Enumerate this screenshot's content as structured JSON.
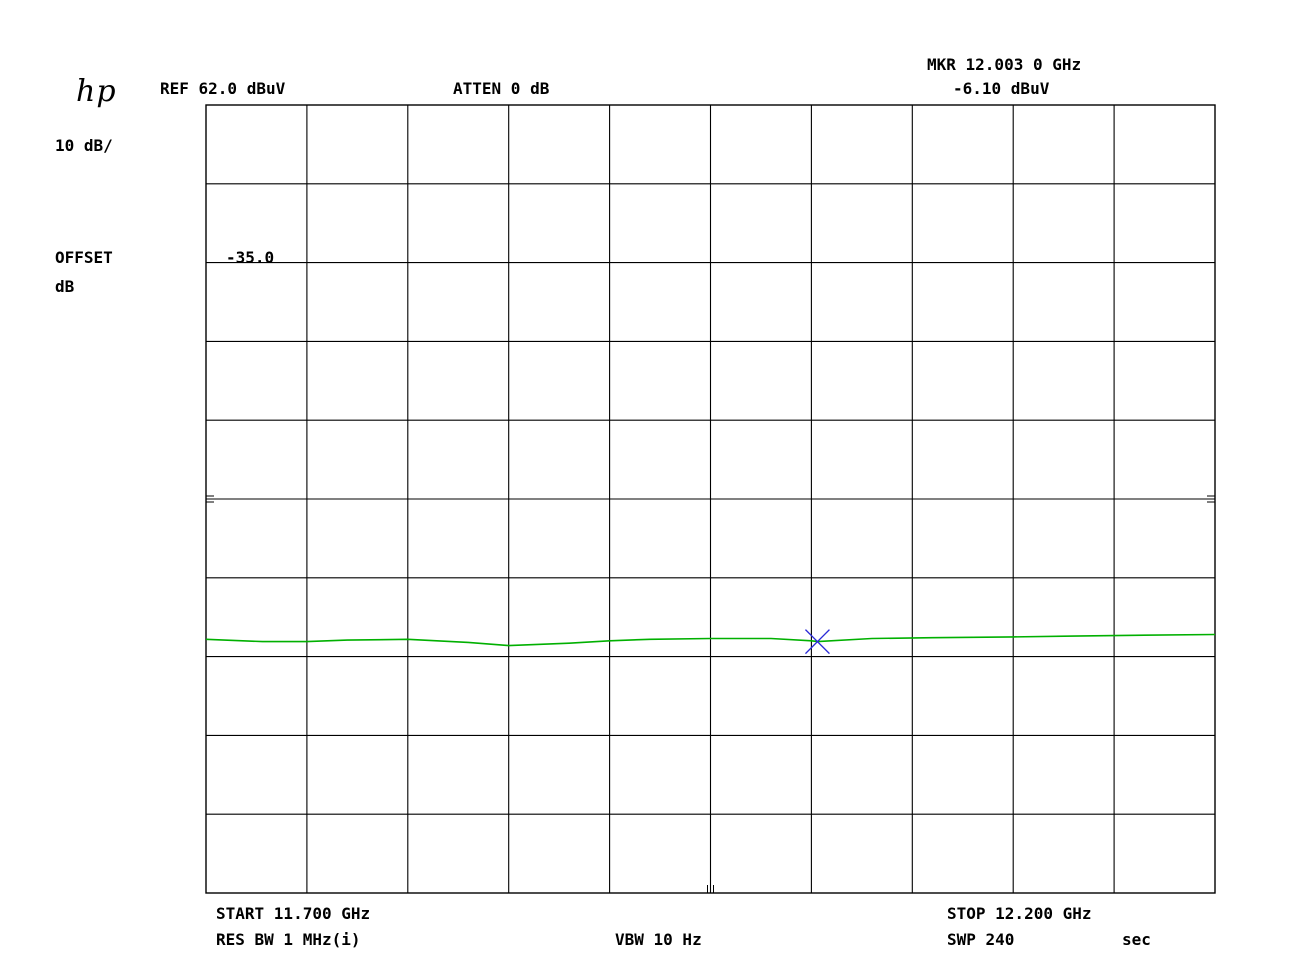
{
  "header": {
    "logo": "hp",
    "ref_level": "REF 62.0 dBuV",
    "atten": "ATTEN 0 dB",
    "marker_freq": "MKR 12.003 0 GHz",
    "marker_level": "-6.10 dBuV",
    "scale": "10 dB/",
    "offset_label": "OFFSET",
    "offset_unit": "dB",
    "offset_value": "-35.0"
  },
  "footer": {
    "start": "START 11.700 GHz",
    "res_bw": "RES BW 1 MHz(i)",
    "vbw": "VBW 10 Hz",
    "stop": "STOP 12.200 GHz",
    "sweep": "SWP 240",
    "sweep_unit": "sec"
  },
  "colors": {
    "trace": "#00b000",
    "marker": "#2a2ad8",
    "grid": "#000000"
  },
  "chart_data": {
    "type": "line",
    "x_unit": "GHz",
    "y_unit": "dBuV",
    "xlim": [
      11.7,
      12.2
    ],
    "ylim": [
      -38.0,
      62.0
    ],
    "grid": true,
    "x_divisions": 10,
    "y_divisions": 10,
    "series": [
      {
        "x": [
          11.7,
          11.728,
          11.75,
          11.77,
          11.8,
          11.83,
          11.85,
          11.88,
          11.9,
          11.92,
          11.95,
          11.98,
          12.0,
          12.003,
          12.03,
          12.06,
          12.1,
          12.13,
          12.16,
          12.2
        ],
        "values": [
          -5.8,
          -6.1,
          -6.1,
          -5.9,
          -5.8,
          -6.2,
          -6.6,
          -6.3,
          -6.0,
          -5.8,
          -5.7,
          -5.7,
          -6.0,
          -6.1,
          -5.7,
          -5.6,
          -5.5,
          -5.4,
          -5.3,
          -5.2
        ]
      }
    ],
    "marker": {
      "x": 12.003,
      "y": -6.1
    }
  }
}
